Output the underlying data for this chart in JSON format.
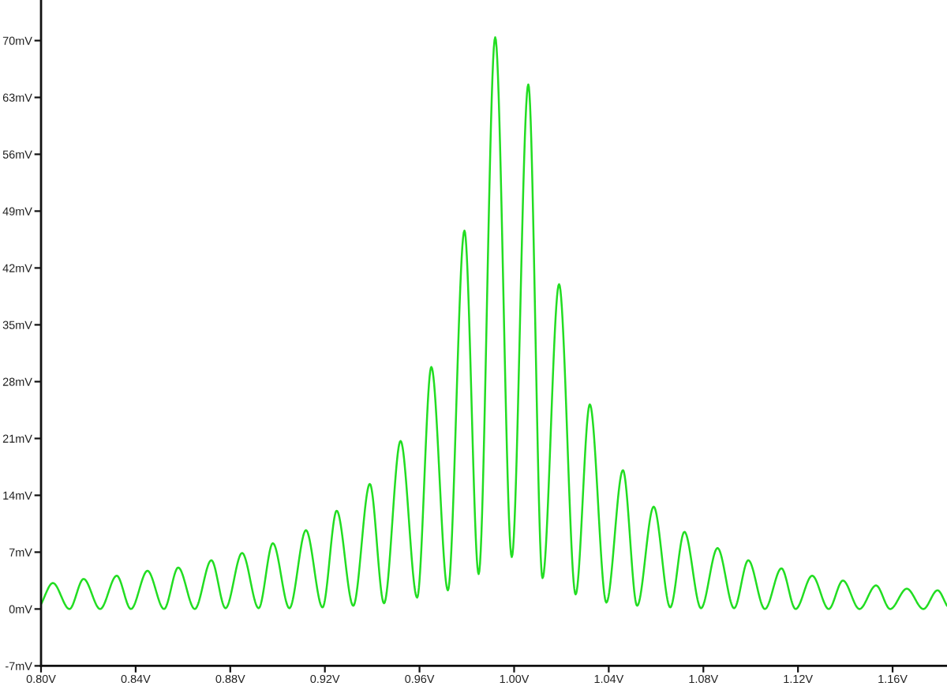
{
  "chart_data": {
    "type": "line",
    "color": "#22dd22",
    "x": [
      0.8,
      0.805,
      0.812,
      0.818,
      0.825,
      0.832,
      0.838,
      0.845,
      0.852,
      0.858,
      0.865,
      0.872,
      0.878,
      0.885,
      0.892,
      0.898,
      0.905,
      0.912,
      0.919,
      0.925,
      0.932,
      0.939,
      0.945,
      0.952,
      0.959,
      0.965,
      0.972,
      0.979,
      0.985,
      0.992,
      0.999,
      1.006,
      1.012,
      1.019,
      1.026,
      1.032,
      1.039,
      1.046,
      1.052,
      1.059,
      1.066,
      1.072,
      1.079,
      1.086,
      1.093,
      1.099,
      1.106,
      1.113,
      1.119,
      1.126,
      1.133,
      1.139,
      1.146,
      1.153,
      1.159,
      1.166,
      1.173,
      1.179,
      1.183
    ],
    "values": [
      0.6,
      3.2,
      0.0,
      3.7,
      0.0,
      4.1,
      0.0,
      4.7,
      0.0,
      5.1,
      0.0,
      6.0,
      0.1,
      6.9,
      0.1,
      8.1,
      0.1,
      9.7,
      0.2,
      12.1,
      0.4,
      15.4,
      0.7,
      20.7,
      1.4,
      29.8,
      2.3,
      46.6,
      4.3,
      70.4,
      6.4,
      64.6,
      3.8,
      40.0,
      1.8,
      25.2,
      0.8,
      17.1,
      0.4,
      12.6,
      0.2,
      9.5,
      0.1,
      7.5,
      0.1,
      6.0,
      0.0,
      5.0,
      0.0,
      4.1,
      0.0,
      3.5,
      0.0,
      2.9,
      0.0,
      2.5,
      0.0,
      2.3,
      0.4
    ],
    "xlim": [
      0.8,
      1.183
    ],
    "ylim": [
      -7,
      75
    ],
    "xticks": [
      {
        "value": 0.8,
        "label": "0.80V"
      },
      {
        "value": 0.84,
        "label": "0.84V"
      },
      {
        "value": 0.88,
        "label": "0.88V"
      },
      {
        "value": 0.92,
        "label": "0.92V"
      },
      {
        "value": 0.96,
        "label": "0.96V"
      },
      {
        "value": 1.0,
        "label": "1.00V"
      },
      {
        "value": 1.04,
        "label": "1.04V"
      },
      {
        "value": 1.08,
        "label": "1.08V"
      },
      {
        "value": 1.12,
        "label": "1.12V"
      },
      {
        "value": 1.16,
        "label": "1.16V"
      }
    ],
    "yticks": [
      {
        "value": -7,
        "label": "-7mV"
      },
      {
        "value": 0,
        "label": "0mV"
      },
      {
        "value": 7,
        "label": "7mV"
      },
      {
        "value": 14,
        "label": "14mV"
      },
      {
        "value": 21,
        "label": "21mV"
      },
      {
        "value": 28,
        "label": "28mV"
      },
      {
        "value": 35,
        "label": "35mV"
      },
      {
        "value": 42,
        "label": "42mV"
      },
      {
        "value": 49,
        "label": "49mV"
      },
      {
        "value": 56,
        "label": "56mV"
      },
      {
        "value": 63,
        "label": "63mV"
      },
      {
        "value": 70,
        "label": "70mV"
      }
    ]
  }
}
